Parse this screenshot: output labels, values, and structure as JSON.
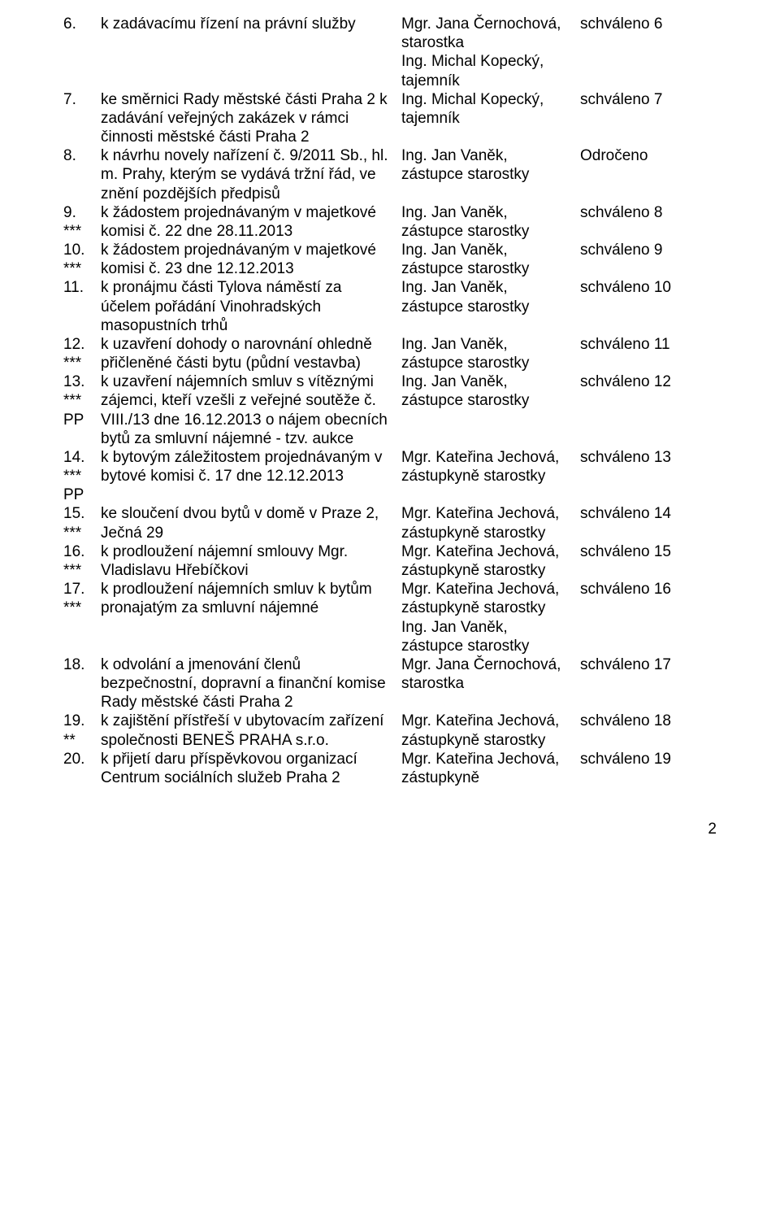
{
  "rows": [
    {
      "num": "6.",
      "title": "k zadávacímu řízení na právní služby",
      "presenter": "Mgr. Jana Černochová, starostka\nIng. Michal Kopecký, tajemník",
      "status": "schváleno 6"
    },
    {
      "num": "7.",
      "title": "ke směrnici Rady městské části Praha 2 k zadávání veřejných zakázek v rámci činnosti městské části Praha 2",
      "presenter": "Ing. Michal Kopecký, tajemník",
      "status": "schváleno 7"
    },
    {
      "num": "8.",
      "title": "k návrhu novely nařízení č. 9/2011 Sb., hl. m. Prahy, kterým se vydává tržní řád, ve znění pozdějších předpisů",
      "presenter": "Ing. Jan Vaněk, zástupce starostky",
      "status": "Odročeno"
    },
    {
      "num": "9.\n***",
      "title": "k žádostem projednávaným v majetkové komisi č. 22 dne 28.11.2013",
      "presenter": "Ing. Jan Vaněk, zástupce starostky",
      "status": "schváleno 8"
    },
    {
      "num": "10.\n***",
      "title": "k žádostem projednávaným v majetkové komisi č. 23 dne 12.12.2013",
      "presenter": "Ing. Jan Vaněk, zástupce starostky",
      "status": "schváleno 9"
    },
    {
      "num": "11.",
      "title": "k pronájmu části Tylova náměstí za účelem pořádání Vinohradských masopustních trhů",
      "presenter": "Ing. Jan Vaněk, zástupce starostky",
      "status": "schváleno 10"
    },
    {
      "num": "12.\n***",
      "title": "k uzavření dohody o narovnání ohledně přičleněné části bytu (půdní vestavba)",
      "presenter": "Ing. Jan Vaněk, zástupce starostky",
      "status": "schváleno 11"
    },
    {
      "num": "13.\n***\nPP",
      "title": "k uzavření nájemních smluv s vítěznými zájemci, kteří vzešli z veřejné soutěže č. VIII./13 dne 16.12.2013 o nájem obecních bytů za smluvní nájemné - tzv. aukce",
      "presenter": "Ing. Jan Vaněk, zástupce starostky",
      "status": "schváleno 12"
    },
    {
      "num": "14.\n***\nPP",
      "title": "k bytovým záležitostem projednávaným v bytové komisi č. 17 dne 12.12.2013",
      "presenter": "Mgr. Kateřina Jechová, zástupkyně starostky",
      "status": "schváleno 13"
    },
    {
      "num": "15.\n***",
      "title": "ke sloučení dvou bytů v domě v Praze 2, Ječná 29",
      "presenter": "Mgr. Kateřina Jechová, zástupkyně starostky",
      "status": "schváleno 14"
    },
    {
      "num": "16.\n***",
      "title": "k prodloužení nájemní smlouvy Mgr. Vladislavu Hřebíčkovi",
      "presenter": "Mgr. Kateřina Jechová, zástupkyně starostky",
      "status": "schváleno 15"
    },
    {
      "num": "17.\n***",
      "title": "k prodloužení nájemních smluv k bytům pronajatým za smluvní nájemné",
      "presenter": "Mgr. Kateřina Jechová, zástupkyně starostky\nIng. Jan Vaněk, zástupce starostky",
      "status": "schváleno 16"
    },
    {
      "num": "18.",
      "title": "k odvolání a jmenování členů bezpečnostní, dopravní a finanční komise Rady městské části Praha 2",
      "presenter": "Mgr. Jana Černochová, starostka",
      "status": "schváleno 17"
    },
    {
      "num": "19.\n**",
      "title": "k zajištění přístřeší v ubytovacím zařízení společnosti BENEŠ PRAHA s.r.o.",
      "presenter": "Mgr. Kateřina Jechová, zástupkyně starostky",
      "status": "schváleno 18"
    },
    {
      "num": "20.",
      "title": "k přijetí daru příspěvkovou organizací Centrum sociálních služeb Praha 2",
      "presenter": "Mgr. Kateřina Jechová, zástupkyně",
      "status": "schváleno 19"
    }
  ],
  "pageNumber": "2"
}
